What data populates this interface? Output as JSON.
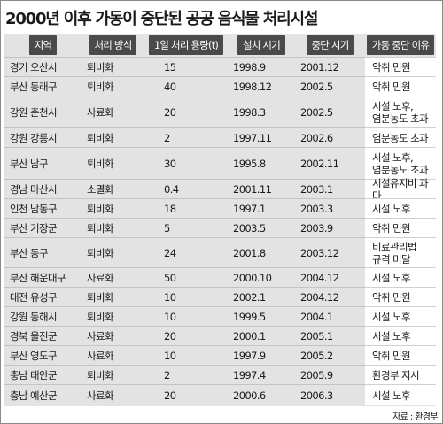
{
  "title": "2000년 이후 가동이 중단된 공공 음식물 처리시설",
  "headers": [
    "지역",
    "처리 방식",
    "1일 처리 용량(t)",
    "설치 시기",
    "중단 시기",
    "가동 중단 이유"
  ],
  "rows": [
    {
      "region": "경기 오산시",
      "method": "퇴비화",
      "capacity": "15",
      "installed": "1998.9",
      "stopped": "2001.12",
      "reason": "악취 민원"
    },
    {
      "region": "부산 동래구",
      "method": "퇴비화",
      "capacity": "40",
      "installed": "1998.12",
      "stopped": "2002.5",
      "reason": "악취 민원"
    },
    {
      "region": "강원 춘천시",
      "method": "사료화",
      "capacity": "20",
      "installed": "1998.3",
      "stopped": "2002.5",
      "reason": "시설 노후,\n염분농도 초과"
    },
    {
      "region": "강원 강릉시",
      "method": "퇴비화",
      "capacity": "2",
      "installed": "1997.11",
      "stopped": "2002.6",
      "reason": "염분농도 초과"
    },
    {
      "region": "부산 남구",
      "method": "퇴비화",
      "capacity": "30",
      "installed": "1995.8",
      "stopped": "2002.11",
      "reason": "시설 노후,\n염분농도 초과"
    },
    {
      "region": "경남 마산시",
      "method": "소멸화",
      "capacity": "0.4",
      "installed": "2001.11",
      "stopped": "2003.1",
      "reason": "시설유지비 과다"
    },
    {
      "region": "인천 남동구",
      "method": "퇴비화",
      "capacity": "18",
      "installed": "1997.1",
      "stopped": "2003.3",
      "reason": "시설 노후"
    },
    {
      "region": "부산 기장군",
      "method": "퇴비화",
      "capacity": "5",
      "installed": "2003.5",
      "stopped": "2003.9",
      "reason": "악취 민원"
    },
    {
      "region": "부산 동구",
      "method": "퇴비화",
      "capacity": "24",
      "installed": "2001.8",
      "stopped": "2003.12",
      "reason": "비료관리법\n규격 미달"
    },
    {
      "region": "부산 해운대구",
      "method": "사료화",
      "capacity": "50",
      "installed": "2000.10",
      "stopped": "2004.12",
      "reason": "시설 노후"
    },
    {
      "region": "대전 유성구",
      "method": "퇴비화",
      "capacity": "10",
      "installed": "2002.1",
      "stopped": "2004.12",
      "reason": "악취 민원"
    },
    {
      "region": "강원 동해시",
      "method": "퇴비화",
      "capacity": "10",
      "installed": "1999.5",
      "stopped": "2004.1",
      "reason": "시설 노후"
    },
    {
      "region": "경북 울진군",
      "method": "사료화",
      "capacity": "20",
      "installed": "2000.1",
      "stopped": "2005.1",
      "reason": "시설 노후"
    },
    {
      "region": "부산 영도구",
      "method": "사료화",
      "capacity": "10",
      "installed": "1997.9",
      "stopped": "2005.2",
      "reason": "악취 민원"
    },
    {
      "region": "충남 태안군",
      "method": "퇴비화",
      "capacity": "2",
      "installed": "1997.4",
      "stopped": "2005.9",
      "reason": "환경부 지시"
    },
    {
      "region": "충남 예산군",
      "method": "사료화",
      "capacity": "20",
      "installed": "2000.6",
      "stopped": "2006.3",
      "reason": "시설 노후"
    }
  ],
  "source": "자료 : 환경부"
}
